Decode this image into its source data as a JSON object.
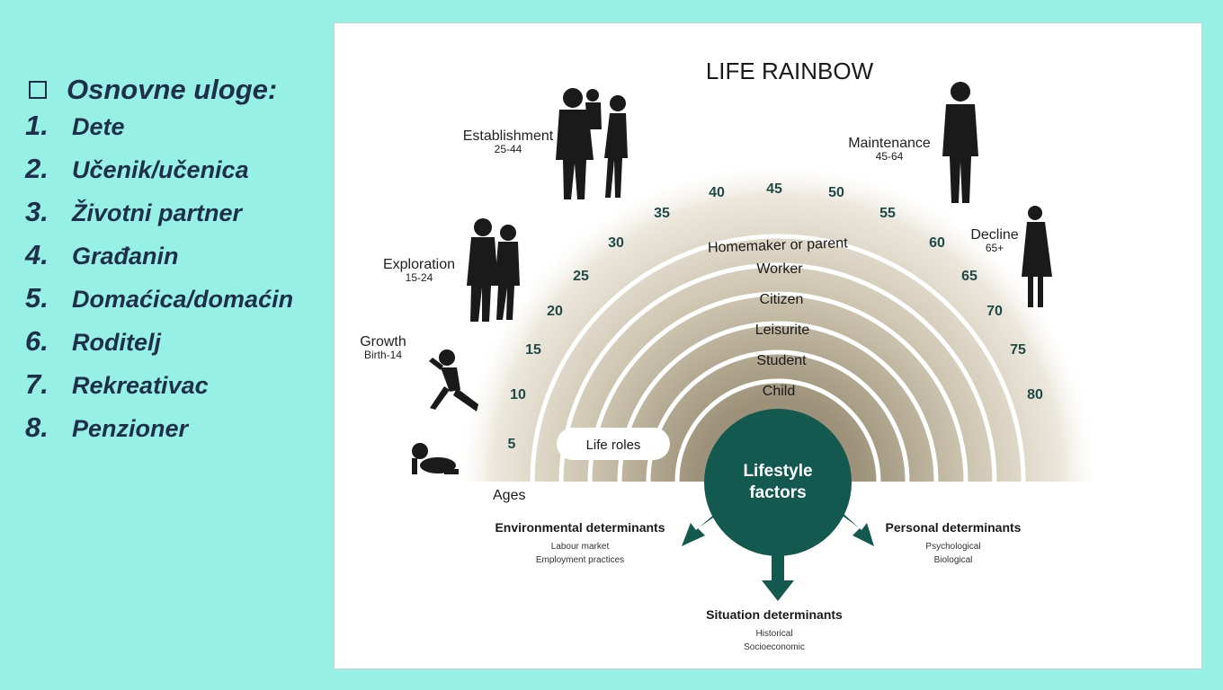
{
  "slide": {
    "heading": "Osnovne uloge:",
    "roles": [
      {
        "num": "1.",
        "label": " Dete"
      },
      {
        "num": "2.",
        "label": "Učenik/učenica"
      },
      {
        "num": "3.",
        "label": " Životni partner"
      },
      {
        "num": "4.",
        "label": "Građanin"
      },
      {
        "num": "5.",
        "label": "Domaćica/domaćin"
      },
      {
        "num": "6.",
        "label": "Roditelj"
      },
      {
        "num": "7.",
        "label": "Rekreativac"
      },
      {
        "num": "8.",
        "label": "Penzioner"
      }
    ]
  },
  "diagram": {
    "title": "LIFE RAINBOW",
    "stages": {
      "growth": {
        "name": "Growth",
        "ages": "Birth-14"
      },
      "exploration": {
        "name": "Exploration",
        "ages": "15-24"
      },
      "establishment": {
        "name": "Establishment",
        "ages": "25-44"
      },
      "maintenance": {
        "name": "Maintenance",
        "ages": "45-64"
      },
      "decline": {
        "name": "Decline",
        "ages": "65+"
      }
    },
    "age_marks": [
      "5",
      "10",
      "15",
      "20",
      "25",
      "30",
      "35",
      "40",
      "45",
      "50",
      "55",
      "60",
      "65",
      "70",
      "75",
      "80"
    ],
    "arc_roles": [
      "Homemaker or parent",
      "Worker",
      "Citizen",
      "Leisurite",
      "Student",
      "Child"
    ],
    "life_roles_label": "Life roles",
    "ages_label": "Ages",
    "center": {
      "line1": "Lifestyle",
      "line2": "factors"
    },
    "determinants": {
      "environmental": {
        "title": "Environmental determinants",
        "items": [
          "Labour market",
          "Employment practices"
        ]
      },
      "personal": {
        "title": "Personal determinants",
        "items": [
          "Psychological",
          "Biological"
        ]
      },
      "situation": {
        "title": "Situation determinants",
        "items": [
          "Historical",
          "Socioeconomic"
        ]
      }
    },
    "colors": {
      "center": "#13594f",
      "arc_band": "#a99f88",
      "numbers": "#1e4b47"
    }
  }
}
